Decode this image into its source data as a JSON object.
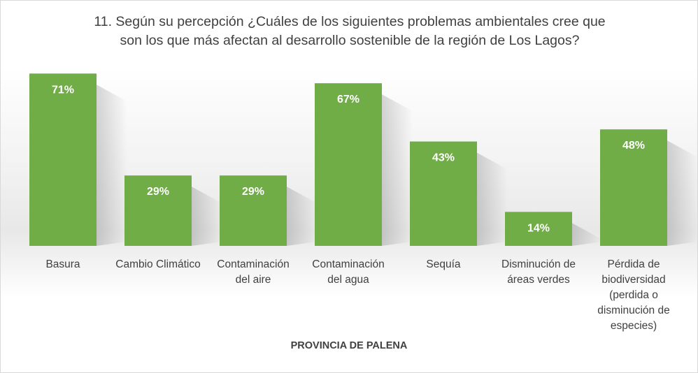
{
  "chart_data": {
    "type": "bar",
    "title": "11. Según su percepción ¿Cuáles de los siguientes problemas ambientales cree que son los que más afectan al desarrollo sostenible de la región de Los Lagos?",
    "title_lines": [
      "11. Según su percepción ¿Cuáles de los siguientes problemas ambientales cree que",
      "son los que más afectan al desarrollo sostenible de la región de Los Lagos?"
    ],
    "xlabel": "PROVINCIA DE PALENA",
    "ylabel": "",
    "ylim": [
      0,
      80
    ],
    "grid": false,
    "legend": "none",
    "bar_color": "#70ad47",
    "categories": [
      "Basura",
      "Cambio Climático",
      "Contaminación del aire",
      "Contaminación del agua",
      "Sequía",
      "Disminución de áreas verdes",
      "Pérdida de biodiversidad (perdida o disminución de especies)"
    ],
    "category_lines": [
      [
        "Basura"
      ],
      [
        "Cambio Climático"
      ],
      [
        "Contaminación",
        "del aire"
      ],
      [
        "Contaminación",
        "del agua"
      ],
      [
        "Sequía"
      ],
      [
        "Disminución de",
        "áreas verdes"
      ],
      [
        "Pérdida de",
        "biodiversidad",
        "(perdida o",
        "disminución de",
        "especies)"
      ]
    ],
    "values": [
      71,
      29,
      29,
      67,
      43,
      14,
      48
    ],
    "data_labels": [
      "71%",
      "29%",
      "29%",
      "67%",
      "43%",
      "14%",
      "48%"
    ]
  }
}
